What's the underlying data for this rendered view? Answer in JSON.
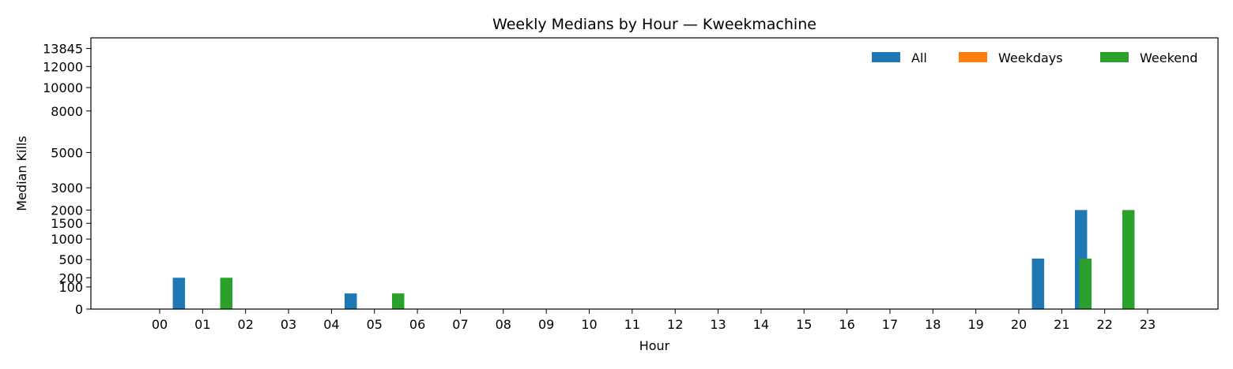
{
  "chart_data": {
    "type": "bar",
    "title": "Weekly Medians by Hour — Kweekmachine",
    "xlabel": "Hour",
    "ylabel": "Median Kills",
    "categories": [
      "00",
      "01",
      "02",
      "03",
      "04",
      "05",
      "06",
      "07",
      "08",
      "09",
      "10",
      "11",
      "12",
      "13",
      "14",
      "15",
      "16",
      "17",
      "18",
      "19",
      "20",
      "21",
      "22",
      "23"
    ],
    "series": [
      {
        "name": "All",
        "color": "#1f77b4",
        "values": [
          0,
          200,
          0,
          0,
          0,
          50,
          0,
          0,
          0,
          0,
          0,
          0,
          0,
          0,
          0,
          0,
          0,
          0,
          0,
          0,
          0,
          520,
          2000,
          0
        ]
      },
      {
        "name": "Weekdays",
        "color": "#ff7f0e",
        "values": [
          0,
          0,
          0,
          0,
          0,
          0,
          0,
          0,
          0,
          0,
          0,
          0,
          0,
          0,
          0,
          0,
          0,
          0,
          0,
          0,
          0,
          0,
          0,
          0
        ]
      },
      {
        "name": "Weekend",
        "color": "#2ca02c",
        "values": [
          0,
          200,
          0,
          0,
          0,
          50,
          0,
          0,
          0,
          0,
          0,
          0,
          0,
          0,
          0,
          0,
          0,
          0,
          0,
          0,
          0,
          520,
          2000,
          0
        ]
      }
    ],
    "yticks": [
      0,
      100,
      200,
      500,
      1000,
      1500,
      2000,
      3000,
      5000,
      8000,
      10000,
      12000,
      13845
    ],
    "ylim": [
      0,
      15000
    ],
    "scale": "sqrt",
    "grid": false,
    "legend": {
      "placement": "top-right"
    }
  }
}
